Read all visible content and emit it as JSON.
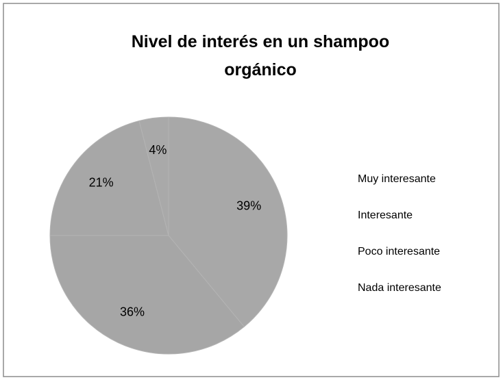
{
  "chart_data": {
    "type": "pie",
    "title": "Nivel de interés en un shampoo orgánico",
    "categories": [
      "Muy interesante",
      "Interesante",
      "Poco interesante",
      "Nada interesante"
    ],
    "values": [
      39,
      36,
      21,
      4
    ],
    "value_labels": [
      "39%",
      "36%",
      "21%",
      "4%"
    ],
    "colors": [
      "#a8a8a8",
      "#a6a6a6",
      "#a7a7a7",
      "#a9a9a9"
    ],
    "legend": "right"
  }
}
